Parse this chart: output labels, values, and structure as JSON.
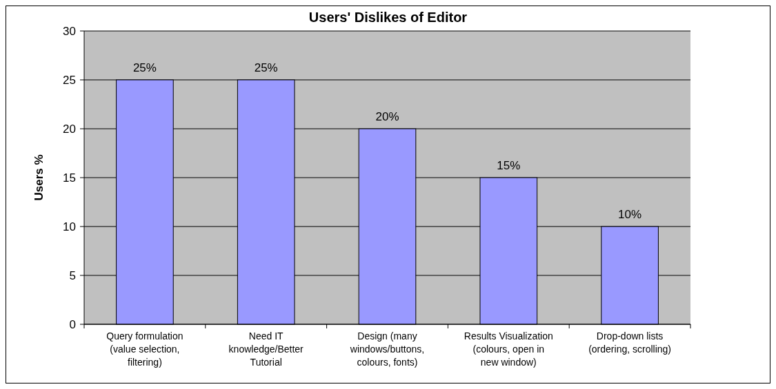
{
  "chart_data": {
    "type": "bar",
    "title": "Users' Dislikes of Editor",
    "ylabel": "Users %",
    "categories": [
      "Query formulation (value selection, filtering)",
      "Need IT knowledge/Better Tutorial",
      "Design (many windows/buttons, colours, fonts)",
      "Results Visualization (colours, open in new window)",
      "Drop-down lists (ordering, scrolling)"
    ],
    "values": [
      25,
      25,
      20,
      15,
      10
    ],
    "value_labels": [
      "25%",
      "25%",
      "20%",
      "15%",
      "10%"
    ],
    "color": "#9999ff",
    "ylim": [
      0,
      30
    ],
    "yticks": [
      0,
      5,
      10,
      15,
      20,
      25,
      30
    ],
    "grid": "y"
  }
}
